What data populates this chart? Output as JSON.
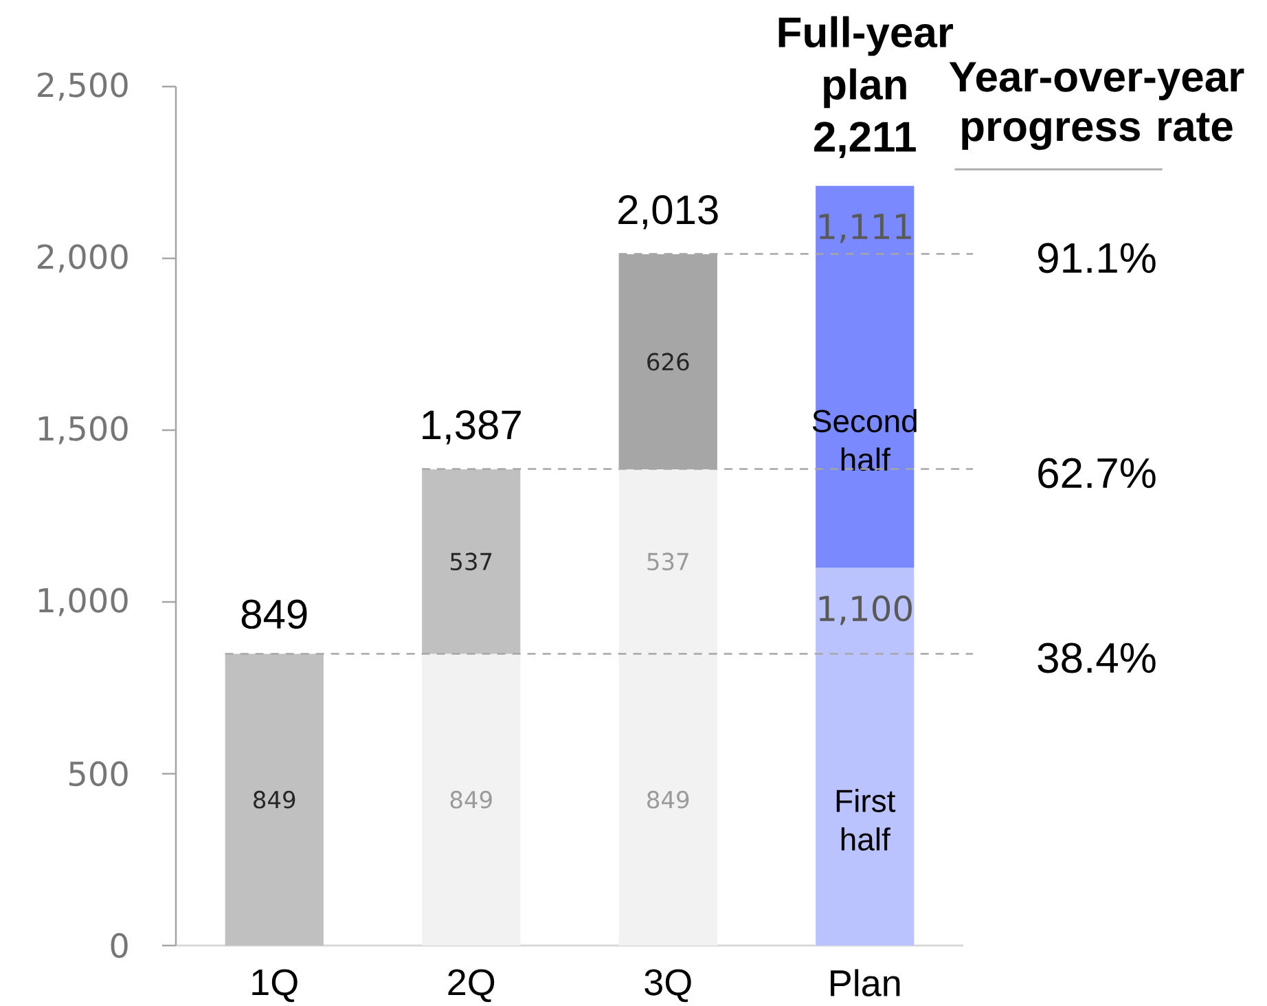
{
  "chart_data": {
    "type": "bar",
    "stacked": true,
    "categories": [
      "1Q",
      "2Q",
      "3Q",
      "Plan"
    ],
    "series": [
      {
        "values": [
          849,
          849,
          849,
          null
        ],
        "colors": [
          "#c0c0c0",
          "#f2f2f2",
          "#f2f2f2",
          null
        ],
        "value_labels": [
          "849",
          "849",
          "849",
          null
        ]
      },
      {
        "values": [
          null,
          537,
          537,
          null
        ],
        "colors": [
          null,
          "#c0c0c0",
          "#f2f2f2",
          null
        ],
        "value_labels": [
          null,
          "537",
          "537",
          null
        ]
      },
      {
        "values": [
          null,
          null,
          626,
          null
        ],
        "colors": [
          null,
          null,
          "#a6a6a6",
          null
        ],
        "value_labels": [
          null,
          null,
          "626",
          null
        ]
      },
      {
        "name": "First half",
        "color": "#bbc3fe",
        "values": [
          null,
          null,
          null,
          1100
        ],
        "value_labels": [
          null,
          null,
          null,
          "1,100"
        ]
      },
      {
        "name": "Second half",
        "color": "#7b89ff",
        "values": [
          null,
          null,
          null,
          1111
        ],
        "value_labels": [
          null,
          null,
          null,
          "1,111"
        ]
      }
    ],
    "totals": [
      "849",
      "1,387",
      "2,013",
      null
    ],
    "ylim": [
      0,
      2500
    ],
    "yticks": [
      0,
      500,
      {
        "value": 1000,
        "label": "1,000"
      },
      {
        "value": 1500,
        "label": "1,500"
      },
      {
        "value": 2000,
        "label": "2,000"
      },
      {
        "value": 2500,
        "label": "2,500"
      }
    ],
    "ref_lines": [
      {
        "axis": "y",
        "value": 849,
        "color": "#a6a6a6",
        "line_style": "dashed"
      },
      {
        "axis": "y",
        "value": 1387,
        "color": "#a6a6a6",
        "line_style": "dashed"
      },
      {
        "axis": "y",
        "value": 2013,
        "color": "#a6a6a6",
        "line_style": "dashed"
      }
    ],
    "annotations": [
      {
        "text": "Full-year plan 2,211",
        "x": "Plan",
        "y": 2211
      },
      "Year-over-year progress rate",
      "91.1%",
      "62.7%",
      "38.4%"
    ]
  }
}
